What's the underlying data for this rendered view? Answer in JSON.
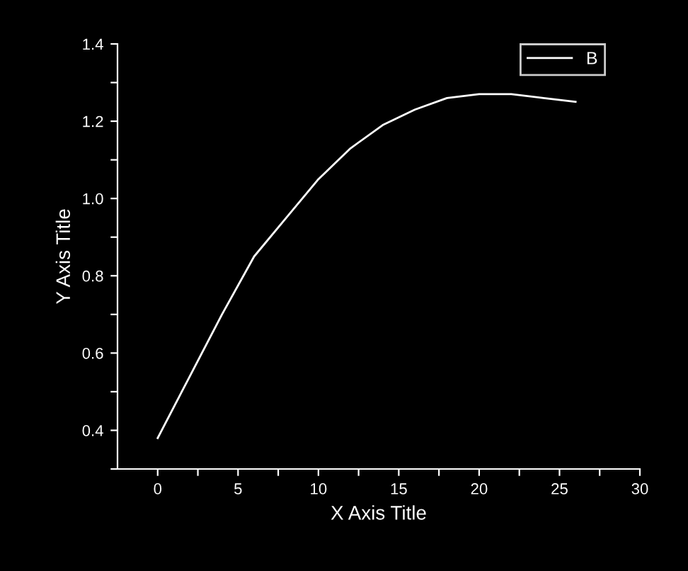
{
  "chart_data": {
    "type": "line",
    "xlabel": "X Axis Title",
    "ylabel": "Y Axis Title",
    "x": [
      0,
      2,
      4,
      6,
      8,
      10,
      12,
      14,
      16,
      18,
      20,
      22,
      24,
      26
    ],
    "series": [
      {
        "name": "B",
        "color": "#ffffff",
        "values": [
          0.38,
          0.54,
          0.7,
          0.85,
          0.95,
          1.05,
          1.13,
          1.19,
          1.23,
          1.26,
          1.27,
          1.27,
          1.26,
          1.25
        ]
      }
    ],
    "xlim": [
      -2.5,
      30
    ],
    "ylim": [
      0.3,
      1.4
    ],
    "xticks": [
      0,
      {
        "value": 2.5,
        "label": null
      },
      5,
      {
        "value": 7.5,
        "label": null
      },
      10,
      {
        "value": 12.5,
        "label": null
      },
      15,
      {
        "value": 17.5,
        "label": null
      },
      20,
      {
        "value": 22.5,
        "label": null
      },
      25,
      {
        "value": 27.5,
        "label": null
      },
      30
    ],
    "yticks": [
      {
        "value": 0.3,
        "label": null
      },
      {
        "value": 0.4,
        "label": "0.4"
      },
      {
        "value": 0.5,
        "label": null
      },
      {
        "value": 0.6,
        "label": "0.6"
      },
      {
        "value": 0.7,
        "label": null
      },
      {
        "value": 0.8,
        "label": "0.8"
      },
      {
        "value": 0.9,
        "label": null
      },
      {
        "value": 1.0,
        "label": "1.0"
      },
      {
        "value": 1.1,
        "label": null
      },
      {
        "value": 1.2,
        "label": "1.2"
      },
      {
        "value": 1.3,
        "label": null
      },
      {
        "value": 1.4,
        "label": "1.4"
      }
    ],
    "grid": false,
    "legend": "top right",
    "marker": "none",
    "line_style": "solid"
  }
}
